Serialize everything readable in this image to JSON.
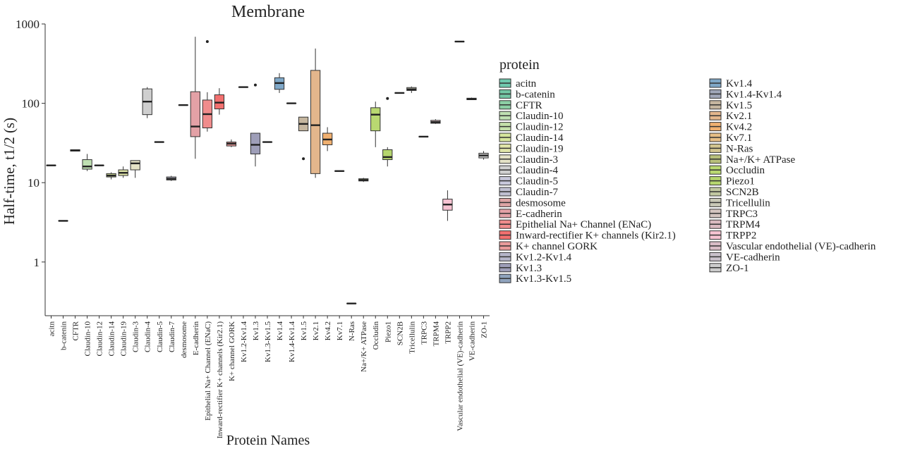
{
  "chart_data": {
    "type": "box",
    "title": "Membrane",
    "xlabel": "Protein Names",
    "ylabel": "Half-time, t1/2 (s)",
    "yscale": "log",
    "ylim": [
      0.2,
      1000
    ],
    "yticks": [
      1,
      10,
      100,
      1000
    ],
    "ytick_labels": [
      "1",
      "10",
      "100",
      "1000"
    ],
    "grid": false,
    "legend": {
      "title": "protein",
      "placement": "right"
    },
    "series": [
      {
        "name": "acitn",
        "color": "#6FC9AE",
        "min": 16.5,
        "q1": 16.5,
        "median": 16.5,
        "q3": 16.5,
        "max": 16.5,
        "outliers": []
      },
      {
        "name": "b-catenin",
        "color": "#72C6A4",
        "min": 3.3,
        "q1": 3.3,
        "median": 3.3,
        "q3": 3.3,
        "max": 3.3,
        "outliers": []
      },
      {
        "name": "CFTR",
        "color": "#8CCFA4",
        "min": 25,
        "q1": 25,
        "median": 25.5,
        "q3": 26,
        "max": 26,
        "outliers": []
      },
      {
        "name": "Claudin-10",
        "color": "#BFE0B2",
        "min": 14,
        "q1": 14.8,
        "median": 16,
        "q3": 19.5,
        "max": 23,
        "outliers": []
      },
      {
        "name": "Claudin-12",
        "color": "#C4E0AA",
        "min": 16.5,
        "q1": 16.5,
        "median": 16.5,
        "q3": 16.5,
        "max": 16.5,
        "outliers": []
      },
      {
        "name": "Claudin-14",
        "color": "#D6E59C",
        "min": 11,
        "q1": 11.8,
        "median": 12.3,
        "q3": 13,
        "max": 13.5,
        "outliers": []
      },
      {
        "name": "Claudin-19",
        "color": "#E0E5A8",
        "min": 11.5,
        "q1": 12.3,
        "median": 13.3,
        "q3": 14.5,
        "max": 16,
        "outliers": []
      },
      {
        "name": "Claudin-3",
        "color": "#E4E2C6",
        "min": 11.5,
        "q1": 14.5,
        "median": 17.5,
        "q3": 19,
        "max": 19,
        "outliers": []
      },
      {
        "name": "Claudin-4",
        "color": "#CFCFCF",
        "min": 65,
        "q1": 72,
        "median": 105,
        "q3": 152,
        "max": 160,
        "outliers": []
      },
      {
        "name": "Claudin-5",
        "color": "#C7C7DA",
        "min": 32.5,
        "q1": 32.5,
        "median": 32.5,
        "q3": 32.5,
        "max": 32.5,
        "outliers": []
      },
      {
        "name": "Claudin-7",
        "color": "#BFBFD1",
        "min": 10.5,
        "q1": 10.8,
        "median": 11.2,
        "q3": 11.8,
        "max": 12.2,
        "outliers": []
      },
      {
        "name": "desmosome",
        "color": "#DDA4A4",
        "min": 95,
        "q1": 95,
        "median": 95,
        "q3": 95,
        "max": 95,
        "outliers": []
      },
      {
        "name": "E-cadherin",
        "color": "#E3A1A6",
        "min": 20,
        "q1": 38,
        "median": 51,
        "q3": 140,
        "max": 690,
        "outliers": []
      },
      {
        "name": "Epithelial Na+ Channel (ENaC)",
        "color": "#F08C8C",
        "min": 44,
        "q1": 49,
        "median": 73,
        "q3": 110,
        "max": 138,
        "outliers": [
          600
        ]
      },
      {
        "name": "Inward-rectifier K+ channels (Kir2.1)",
        "color": "#F2706F",
        "min": 72,
        "q1": 85,
        "median": 102,
        "q3": 128,
        "max": 155,
        "outliers": []
      },
      {
        "name": "K+ channel GORK",
        "color": "#E99A9A",
        "min": 28,
        "q1": 29,
        "median": 31,
        "q3": 32.5,
        "max": 35,
        "outliers": []
      },
      {
        "name": "Kv1.2-Kv1.4",
        "color": "#B5B5C9",
        "min": 160,
        "q1": 160,
        "median": 160,
        "q3": 160,
        "max": 160,
        "outliers": []
      },
      {
        "name": "Kv1.3",
        "color": "#9E9EB8",
        "min": 16,
        "q1": 23,
        "median": 30,
        "q3": 42,
        "max": 42,
        "outliers": [
          170
        ]
      },
      {
        "name": "Kv1.3-Kv1.5",
        "color": "#8FA3BD",
        "min": 32.5,
        "q1": 32.5,
        "median": 32.5,
        "q3": 32.5,
        "max": 32.5,
        "outliers": []
      },
      {
        "name": "Kv1.4",
        "color": "#7FA8C8",
        "min": 135,
        "q1": 150,
        "median": 180,
        "q3": 210,
        "max": 240,
        "outliers": []
      },
      {
        "name": "Kv1.4-Kv1.4",
        "color": "#9FA6B8",
        "min": 100,
        "q1": 100,
        "median": 100,
        "q3": 100,
        "max": 100,
        "outliers": []
      },
      {
        "name": "Kv1.5",
        "color": "#C5B69F",
        "min": 45,
        "q1": 45,
        "median": 55,
        "q3": 67,
        "max": 67,
        "outliers": [
          20
        ]
      },
      {
        "name": "Kv2.1",
        "color": "#E3B68C",
        "min": 11.5,
        "q1": 13,
        "median": 53,
        "q3": 260,
        "max": 490,
        "outliers": []
      },
      {
        "name": "Kv4.2",
        "color": "#F0B070",
        "min": 25,
        "q1": 30,
        "median": 35,
        "q3": 42,
        "max": 50,
        "outliers": []
      },
      {
        "name": "Kv7.1",
        "color": "#E5BE86",
        "min": 14,
        "q1": 14,
        "median": 14,
        "q3": 14,
        "max": 14,
        "outliers": []
      },
      {
        "name": "N-Ras",
        "color": "#D2C48F",
        "min": 0.3,
        "q1": 0.3,
        "median": 0.3,
        "q3": 0.3,
        "max": 0.3,
        "outliers": []
      },
      {
        "name": "Na+/K+ ATPase",
        "color": "#B7BF7A",
        "min": 10.2,
        "q1": 10.5,
        "median": 10.8,
        "q3": 11.2,
        "max": 11.5,
        "outliers": []
      },
      {
        "name": "Occludin",
        "color": "#B9D871",
        "min": 28,
        "q1": 45,
        "median": 72,
        "q3": 88,
        "max": 105,
        "outliers": []
      },
      {
        "name": "Piezo1",
        "color": "#B5D56E",
        "min": 16,
        "q1": 19.5,
        "median": 21,
        "q3": 26,
        "max": 28,
        "outliers": [
          115
        ]
      },
      {
        "name": "SCN2B",
        "color": "#C0C7A0",
        "min": 135,
        "q1": 135,
        "median": 135,
        "q3": 135,
        "max": 135,
        "outliers": []
      },
      {
        "name": "Tricellulin",
        "color": "#C8C8B6",
        "min": 135,
        "q1": 145,
        "median": 150,
        "q3": 158,
        "max": 163,
        "outliers": []
      },
      {
        "name": "TRPC3",
        "color": "#D3C4BF",
        "min": 38,
        "q1": 38,
        "median": 38,
        "q3": 38,
        "max": 38,
        "outliers": []
      },
      {
        "name": "TRPM4",
        "color": "#DAB9C0",
        "min": 55,
        "q1": 56,
        "median": 58,
        "q3": 61,
        "max": 63,
        "outliers": []
      },
      {
        "name": "TRPP2",
        "color": "#F6C3D2",
        "min": 3.3,
        "q1": 4.5,
        "median": 5.3,
        "q3": 6.2,
        "max": 8,
        "outliers": []
      },
      {
        "name": "Vascular endothelial (VE)-cadherin",
        "color": "#D9BCC6",
        "min": 600,
        "q1": 600,
        "median": 600,
        "q3": 600,
        "max": 600,
        "outliers": []
      },
      {
        "name": "VE-cadherin",
        "color": "#C9C1CB",
        "min": 110,
        "q1": 111,
        "median": 113,
        "q3": 116,
        "max": 118,
        "outliers": []
      },
      {
        "name": "ZO-1",
        "color": "#CCCCCC",
        "min": 19.5,
        "q1": 20.5,
        "median": 22,
        "q3": 23.5,
        "max": 25,
        "outliers": []
      }
    ]
  }
}
